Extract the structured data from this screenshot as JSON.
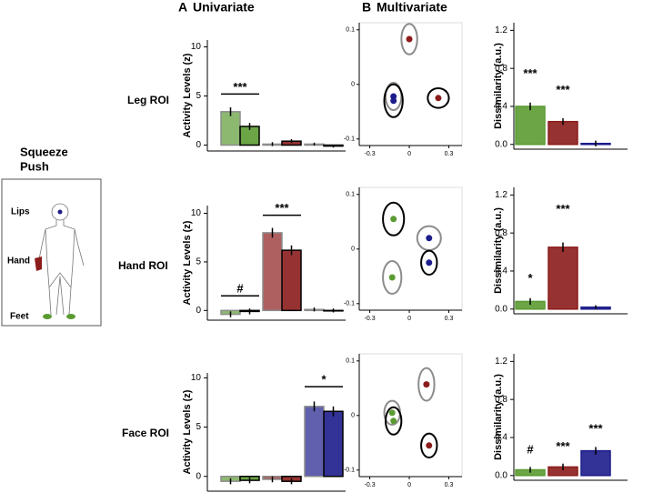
{
  "panels": [
    {
      "letter": "A",
      "title": "Univariate"
    },
    {
      "letter": "B",
      "title": "Multivariate"
    }
  ],
  "legend": [
    {
      "name": "Squeeze",
      "color": "#8c8c8c"
    },
    {
      "name": "Push",
      "color": "#000000"
    }
  ],
  "body": {
    "labels": [
      {
        "text": "Lips",
        "color": "#1c1c8c"
      },
      {
        "text": "Hand",
        "color": "#8c1c1c"
      },
      {
        "text": "Feet",
        "color": "#5b9b32"
      }
    ]
  },
  "rows": [
    "Leg ROI",
    "Hand ROI",
    "Face ROI"
  ],
  "chart_data": [
    {
      "type": "bar",
      "ylabel": "Activity Levels (z)",
      "values": [
        3.4,
        1.9,
        0.1,
        0.4,
        0.1,
        -0.1
      ],
      "errors": [
        0.45,
        0.35,
        0.2,
        0.2,
        0.15,
        0.15
      ],
      "colors": [
        "#5b9b32",
        "#5b9b32",
        "#8c1c1c",
        "#8c1c1c",
        "#1c1c8c",
        "#1c1c8c"
      ],
      "outlines": [
        "#8c8c8c",
        "#000000",
        "#8c8c8c",
        "#000000",
        "#8c8c8c",
        "#000000"
      ],
      "ylim": [
        -0.6,
        10.7
      ],
      "yticks": [
        0,
        5,
        10
      ],
      "annotations": [
        {
          "text": "***",
          "from": 0,
          "to": 1,
          "value": 5.2
        }
      ]
    },
    {
      "type": "scatter",
      "x": [
        0.0,
        0.22,
        -0.12,
        -0.12
      ],
      "y": [
        0.083,
        -0.025,
        -0.022,
        -0.03
      ],
      "xerr": [
        0.06,
        0.08,
        0.06,
        0.07
      ],
      "yerr": [
        0.028,
        0.018,
        0.025,
        0.03
      ],
      "colors": [
        "#8c1c1c",
        "#8c1c1c",
        "#1c1c8c",
        "#1c1c8c"
      ],
      "outlines": [
        "#8c8c8c",
        "#000000",
        "#8c8c8c",
        "#000000"
      ],
      "xlim": [
        -0.38,
        0.4
      ],
      "ylim": [
        -0.112,
        0.113
      ],
      "xticks": [
        -0.3,
        0,
        0.3
      ],
      "yticks": [
        -0.1,
        0,
        0.1
      ]
    },
    {
      "type": "bar",
      "ylabel": "Dissimilarity (a.u.)",
      "values": [
        0.4,
        0.24,
        0.01
      ],
      "errors": [
        0.04,
        0.035,
        0.03
      ],
      "colors": [
        "#5b9b32",
        "#8c1c1c",
        "#1c1c8c"
      ],
      "outlines": [
        "#5b9b32",
        "#8c1c1c",
        "#1c1c8c"
      ],
      "ylim": [
        -0.05,
        1.28
      ],
      "yticks": [
        {
          "value": 0,
          "label": "0.0"
        },
        0.4,
        0.8,
        1.2
      ],
      "annotations": [
        {
          "text": "***",
          "from": 0,
          "to": 0,
          "value": 0.67
        },
        {
          "text": "***",
          "from": 1,
          "to": 1,
          "value": 0.5
        }
      ]
    },
    {
      "type": "bar",
      "ylabel": "Activity Levels (z)",
      "values": [
        -0.4,
        -0.1,
        8.0,
        6.2,
        0.1,
        0.0
      ],
      "errors": [
        0.3,
        0.3,
        0.5,
        0.5,
        0.2,
        0.2
      ],
      "colors": [
        "#5b9b32",
        "#5b9b32",
        "#8c1c1c",
        "#8c1c1c",
        "#1c1c8c",
        "#1c1c8c"
      ],
      "outlines": [
        "#8c8c8c",
        "#000000",
        "#8c8c8c",
        "#000000",
        "#8c8c8c",
        "#000000"
      ],
      "ylim": [
        -1,
        10.8
      ],
      "yticks": [
        0,
        5,
        10
      ],
      "annotations": [
        {
          "text": "#",
          "from": 0,
          "to": 1,
          "value": 1.5
        },
        {
          "text": "***",
          "from": 2,
          "to": 3,
          "value": 9.8
        }
      ]
    },
    {
      "type": "scatter",
      "x": [
        -0.12,
        -0.13,
        0.15,
        0.15
      ],
      "y": [
        0.055,
        -0.052,
        0.02,
        -0.025
      ],
      "xerr": [
        0.08,
        0.07,
        0.09,
        0.06
      ],
      "yerr": [
        0.03,
        0.03,
        0.022,
        0.022
      ],
      "colors": [
        "#5b9b32",
        "#5b9b32",
        "#1c1c8c",
        "#1c1c8c"
      ],
      "outlines": [
        "#000000",
        "#8c8c8c",
        "#8c8c8c",
        "#000000"
      ],
      "xlim": [
        -0.38,
        0.4
      ],
      "ylim": [
        -0.112,
        0.113
      ],
      "xticks": [
        -0.3,
        0,
        0.3
      ],
      "yticks": [
        -0.1,
        0,
        0.1
      ]
    },
    {
      "type": "bar",
      "ylabel": "Dissimilarity (a.u.)",
      "values": [
        0.08,
        0.65,
        0.02
      ],
      "errors": [
        0.035,
        0.05,
        0.02
      ],
      "colors": [
        "#5b9b32",
        "#8c1c1c",
        "#1c1c8c"
      ],
      "outlines": [
        "#5b9b32",
        "#8c1c1c",
        "#1c1c8c"
      ],
      "ylim": [
        -0.05,
        1.28
      ],
      "yticks": [
        {
          "value": 0,
          "label": "0.0"
        },
        0.4,
        0.8,
        1.2
      ],
      "annotations": [
        {
          "text": "*",
          "from": 0,
          "to": 0,
          "value": 0.25
        },
        {
          "text": "***",
          "from": 1,
          "to": 1,
          "value": 0.98
        }
      ]
    },
    {
      "type": "bar",
      "ylabel": "Activity Levels (z)",
      "values": [
        -0.5,
        -0.4,
        -0.3,
        -0.5,
        7.1,
        6.6
      ],
      "errors": [
        0.3,
        0.3,
        0.3,
        0.3,
        0.5,
        0.5
      ],
      "colors": [
        "#5b9b32",
        "#5b9b32",
        "#8c1c1c",
        "#8c1c1c",
        "#1c1c8c",
        "#1c1c8c"
      ],
      "outlines": [
        "#8c8c8c",
        "#000000",
        "#8c8c8c",
        "#000000",
        "#8c8c8c",
        "#000000"
      ],
      "ylim": [
        -1.5,
        10.5
      ],
      "yticks": [
        0,
        5,
        10
      ],
      "annotations": [
        {
          "text": "*",
          "from": 4,
          "to": 5,
          "value": 9.1
        }
      ]
    },
    {
      "type": "scatter",
      "x": [
        -0.13,
        -0.12,
        0.13,
        0.15
      ],
      "y": [
        0.005,
        -0.01,
        0.057,
        -0.055
      ],
      "xerr": [
        0.06,
        0.06,
        0.06,
        0.06
      ],
      "yerr": [
        0.022,
        0.025,
        0.03,
        0.022
      ],
      "colors": [
        "#5b9b32",
        "#5b9b32",
        "#8c1c1c",
        "#8c1c1c"
      ],
      "outlines": [
        "#8c8c8c",
        "#000000",
        "#8c8c8c",
        "#000000"
      ],
      "xlim": [
        -0.38,
        0.4
      ],
      "ylim": [
        -0.112,
        0.113
      ],
      "xticks": [
        -0.3,
        0,
        0.3
      ],
      "yticks": [
        -0.1,
        0,
        0.1
      ]
    },
    {
      "type": "bar",
      "ylabel": "Dissimilarity (a.u.)",
      "values": [
        0.06,
        0.09,
        0.26
      ],
      "errors": [
        0.03,
        0.035,
        0.04
      ],
      "colors": [
        "#5b9b32",
        "#8c1c1c",
        "#1c1c8c"
      ],
      "outlines": [
        "#5b9b32",
        "#8c1c1c",
        "#1c1c8c"
      ],
      "ylim": [
        -0.05,
        1.28
      ],
      "yticks": [
        {
          "value": 0,
          "label": "0.0"
        },
        0.4,
        0.8,
        1.2
      ],
      "annotations": [
        {
          "text": "#",
          "from": 0,
          "to": 0,
          "value": 0.2
        },
        {
          "text": "***",
          "from": 1,
          "to": 1,
          "value": 0.23
        },
        {
          "text": "***",
          "from": 2,
          "to": 2,
          "value": 0.42
        }
      ]
    }
  ]
}
